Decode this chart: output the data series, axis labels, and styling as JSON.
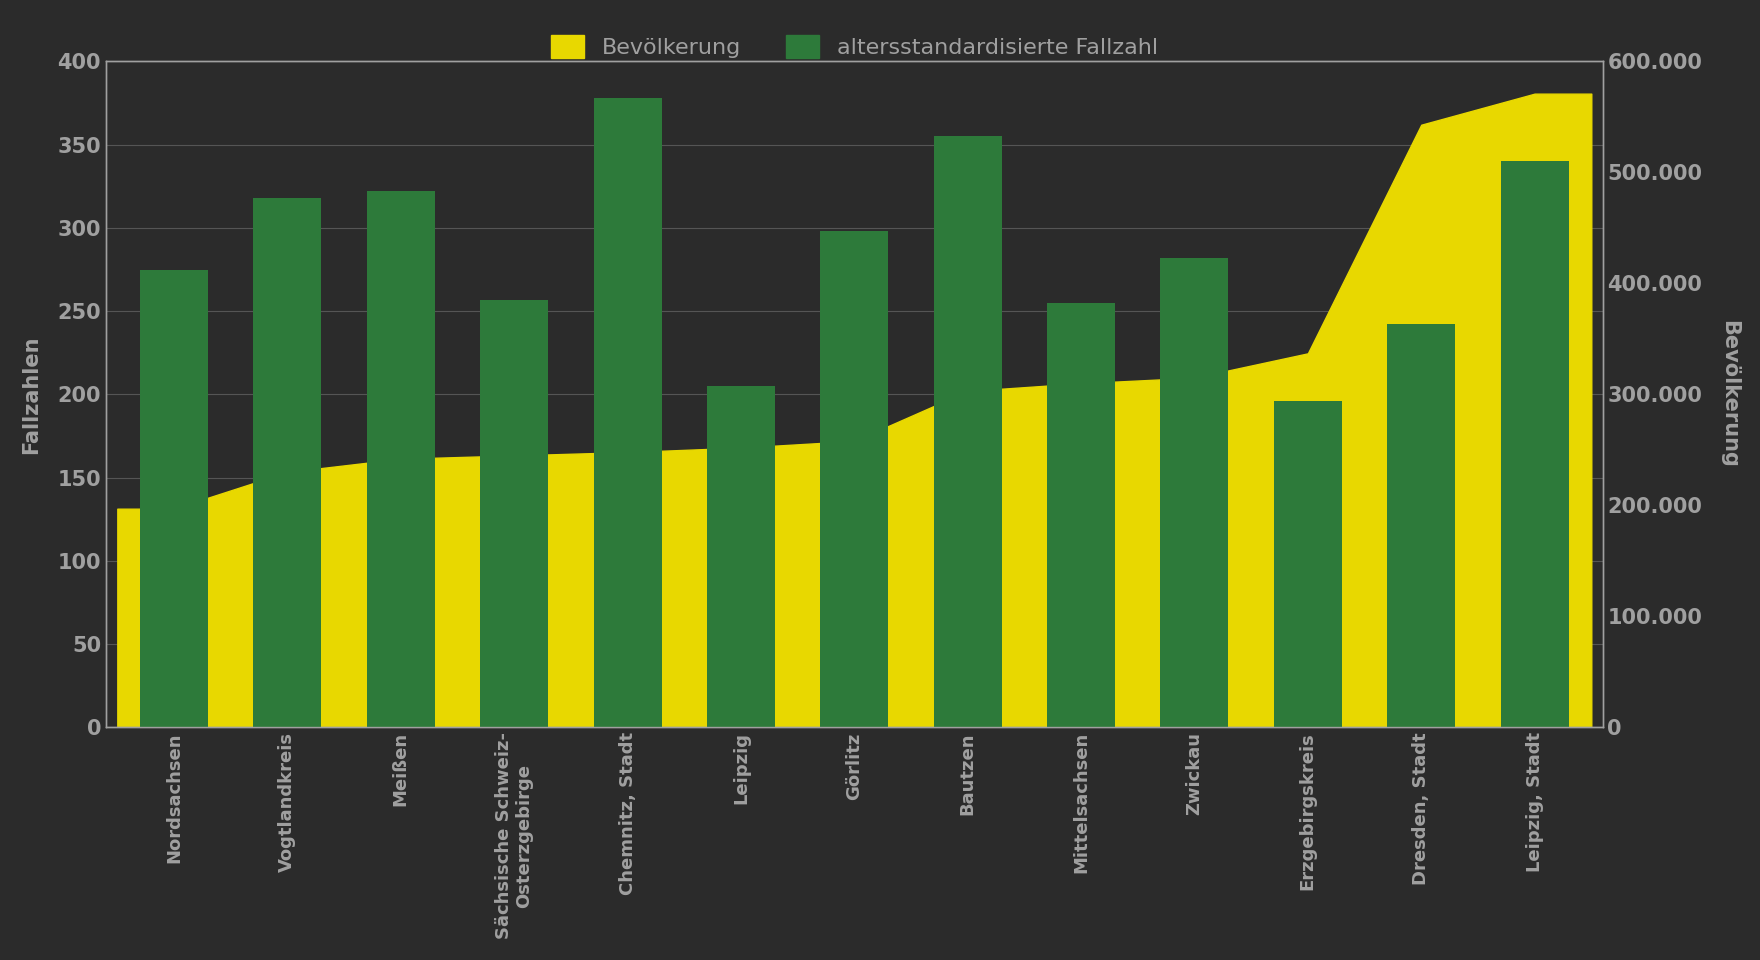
{
  "categories": [
    "Nordsachsen",
    "Vogtlandkreis",
    "Meißen",
    "Sächsische Schweiz-\nOsterzgebirge",
    "Chemnitz, Stadt",
    "Leipzig",
    "Görlitz",
    "Bautzen",
    "Mittelsachsen",
    "Zwickau",
    "Erzgebirgskreis",
    "Dresden, Stadt",
    "Leipzig, Stadt"
  ],
  "fallzahl": [
    275,
    318,
    322,
    257,
    378,
    205,
    298,
    355,
    255,
    282,
    196,
    242,
    340
  ],
  "bevoelkerung": [
    197000,
    230000,
    242000,
    245000,
    248000,
    252000,
    258000,
    303000,
    310000,
    315000,
    337000,
    543000,
    571000
  ],
  "bar_color_green": "#2d7a3a",
  "area_color_yellow": "#e8d800",
  "left_ylim": [
    0,
    400
  ],
  "right_ylim": [
    0,
    600000
  ],
  "left_yticks": [
    0,
    50,
    100,
    150,
    200,
    250,
    300,
    350,
    400
  ],
  "right_yticks": [
    0,
    100000,
    200000,
    300000,
    400000,
    500000,
    600000
  ],
  "ylabel_left": "Fallzahlen",
  "ylabel_right": "Bevölkerung",
  "legend_labels": [
    "Bevölkerung",
    "altersstandardisierte Fallzahl"
  ],
  "background_color": "#2b2b2b",
  "text_color": "#a0a0a0",
  "grid_color": "#555555"
}
